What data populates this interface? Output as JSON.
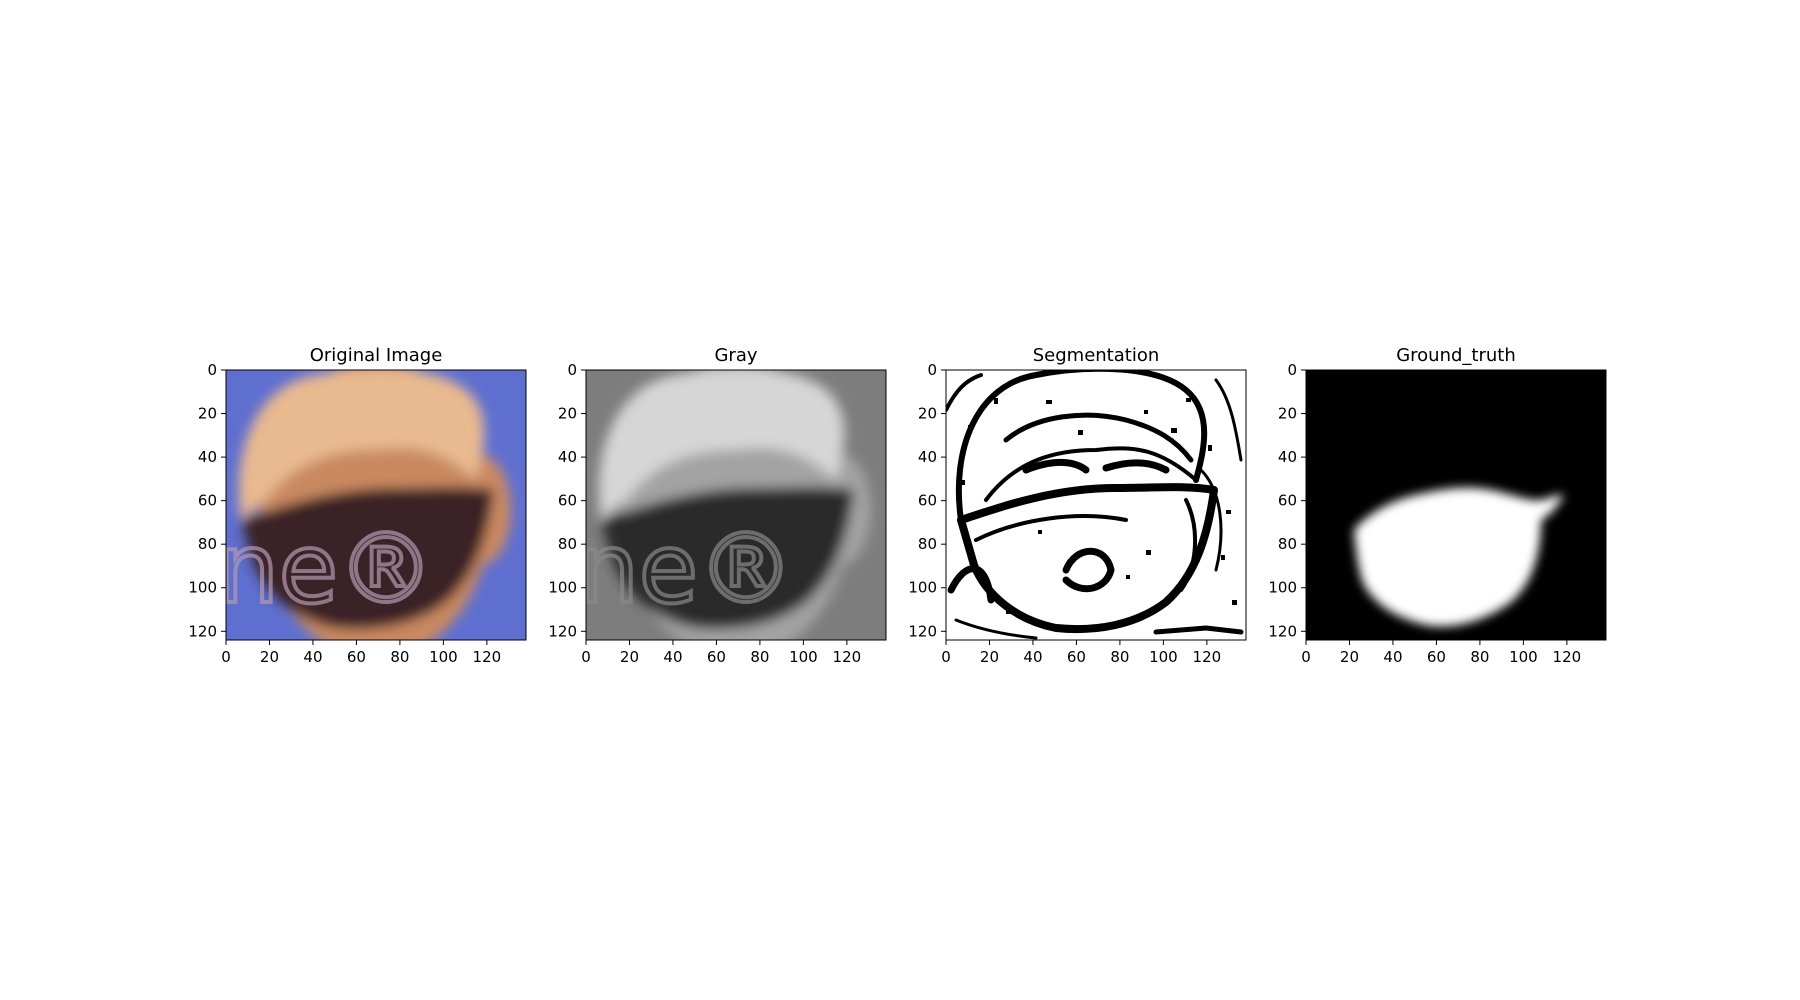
{
  "figure": {
    "panels": [
      {
        "id": "original",
        "title": "Original Image"
      },
      {
        "id": "gray",
        "title": "Gray"
      },
      {
        "id": "segmentation",
        "title": "Segmentation"
      },
      {
        "id": "ground_truth",
        "title": "Ground_truth"
      }
    ],
    "x_axis": {
      "range": [
        0,
        138
      ],
      "ticks": [
        "0",
        "20",
        "40",
        "60",
        "80",
        "100",
        "120"
      ]
    },
    "y_axis": {
      "range": [
        0,
        124
      ],
      "ticks": [
        "0",
        "20",
        "40",
        "60",
        "80",
        "100",
        "120"
      ]
    },
    "watermark": "ne®"
  },
  "colors": {
    "original_background": "#5f6fd0",
    "original_hair": "#e9b98f",
    "original_skin": "#c98961",
    "original_mask": "#3a2426",
    "gray_background": "#7d7d7d",
    "gray_hair": "#d6d6d6",
    "gray_skin": "#a3a3a3",
    "gray_mask": "#2a2a2a",
    "ground_truth_background": "#000000",
    "ground_truth_region": "#ffffff"
  }
}
